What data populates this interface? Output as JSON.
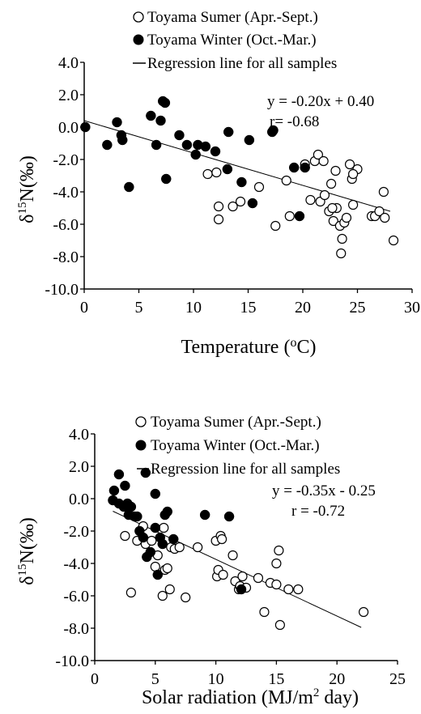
{
  "chart_data": [
    {
      "type": "scatter",
      "xlabel": "Temperature (°C)",
      "ylabel": "δ15N(‰)",
      "xlim": [
        0,
        30
      ],
      "ylim": [
        -10,
        4
      ],
      "xticks": [
        "0",
        "5",
        "10",
        "15",
        "20",
        "25",
        "30"
      ],
      "yticks": [
        "-10.0",
        "-8.0",
        "-6.0",
        "-4.0",
        "-2.0",
        "0.0",
        "2.0",
        "4.0"
      ],
      "legend_position": "top",
      "legend": [
        "Toyama Sumer (Apr.-Sept.)",
        "Toyama Winter (Oct.-Mar.)",
        "Regression line for all samples"
      ],
      "annotations": [
        "y = -0.20x + 0.40",
        "r= -0.68"
      ],
      "regression": {
        "slope": -0.2,
        "intercept": 0.4,
        "x_range": [
          0,
          28
        ]
      },
      "series": [
        {
          "name": "Toyama Sumer (Apr.-Sept.)",
          "marker": "open-circle",
          "points": [
            [
              11.3,
              -2.9
            ],
            [
              12.1,
              -2.8
            ],
            [
              12.3,
              -4.9
            ],
            [
              12.3,
              -5.7
            ],
            [
              13.6,
              -4.9
            ],
            [
              14.3,
              -4.6
            ],
            [
              16.0,
              -3.7
            ],
            [
              17.5,
              -6.1
            ],
            [
              18.5,
              -3.3
            ],
            [
              18.8,
              -5.5
            ],
            [
              20.2,
              -2.3
            ],
            [
              20.7,
              -4.5
            ],
            [
              21.1,
              -2.1
            ],
            [
              21.4,
              -1.7
            ],
            [
              21.6,
              -4.6
            ],
            [
              21.9,
              -2.1
            ],
            [
              22.0,
              -4.2
            ],
            [
              22.4,
              -5.2
            ],
            [
              22.6,
              -3.5
            ],
            [
              22.8,
              -5.8
            ],
            [
              23.0,
              -2.7
            ],
            [
              23.1,
              -5.0
            ],
            [
              23.4,
              -6.1
            ],
            [
              23.5,
              -7.8
            ],
            [
              23.6,
              -6.9
            ],
            [
              23.8,
              -5.9
            ],
            [
              24.0,
              -5.6
            ],
            [
              24.3,
              -2.3
            ],
            [
              24.5,
              -3.2
            ],
            [
              24.6,
              -4.8
            ],
            [
              25.0,
              -2.6
            ],
            [
              26.3,
              -5.5
            ],
            [
              26.6,
              -5.5
            ],
            [
              27.0,
              -5.2
            ],
            [
              27.4,
              -4.0
            ],
            [
              27.5,
              -5.6
            ],
            [
              28.3,
              -7.0
            ],
            [
              24.6,
              -2.9
            ],
            [
              22.7,
              -5.0
            ]
          ]
        },
        {
          "name": "Toyama Winter (Oct.-Mar.)",
          "marker": "filled-circle",
          "points": [
            [
              0.1,
              0.0
            ],
            [
              2.1,
              -1.1
            ],
            [
              3.0,
              0.3
            ],
            [
              3.4,
              -0.5
            ],
            [
              3.5,
              -0.8
            ],
            [
              4.1,
              -3.7
            ],
            [
              6.1,
              0.7
            ],
            [
              6.6,
              -1.1
            ],
            [
              7.0,
              0.4
            ],
            [
              7.2,
              1.6
            ],
            [
              7.4,
              1.5
            ],
            [
              7.5,
              -3.2
            ],
            [
              8.7,
              -0.5
            ],
            [
              9.4,
              -1.1
            ],
            [
              10.2,
              -1.7
            ],
            [
              10.4,
              -1.1
            ],
            [
              11.1,
              -1.2
            ],
            [
              12.0,
              -1.5
            ],
            [
              13.1,
              -2.6
            ],
            [
              13.2,
              -0.3
            ],
            [
              14.4,
              -3.4
            ],
            [
              15.1,
              -0.8
            ],
            [
              15.4,
              -4.7
            ],
            [
              17.2,
              -0.3
            ],
            [
              17.3,
              -0.2
            ],
            [
              19.2,
              -2.5
            ],
            [
              19.7,
              -5.5
            ],
            [
              20.2,
              -2.5
            ]
          ]
        }
      ]
    },
    {
      "type": "scatter",
      "xlabel": "Solar radiation (MJ/m2 day)",
      "ylabel": "δ15N(‰)",
      "xlim": [
        0,
        25
      ],
      "ylim": [
        -10,
        4
      ],
      "xticks": [
        "0",
        "5",
        "10",
        "15",
        "20",
        "25"
      ],
      "yticks": [
        "-10.0",
        "-8.0",
        "-6.0",
        "-4.0",
        "-2.0",
        "0.0",
        "2.0",
        "4.0"
      ],
      "legend_position": "top",
      "legend": [
        "Toyama Sumer (Apr.-Sept.)",
        "Toyama Winter (Oct.-Mar.)",
        "Regression line for all samples"
      ],
      "annotations": [
        "y = -0.35x - 0.25",
        "r = -0.72"
      ],
      "regression": {
        "slope": -0.35,
        "intercept": -0.25,
        "x_range": [
          1.5,
          22
        ]
      },
      "series": [
        {
          "name": "Toyama Sumer (Apr.-Sept.)",
          "marker": "open-circle",
          "points": [
            [
              2.5,
              -2.3
            ],
            [
              3.0,
              -5.8
            ],
            [
              3.5,
              -2.6
            ],
            [
              4.0,
              -1.7
            ],
            [
              4.2,
              -2.8
            ],
            [
              4.7,
              -2.6
            ],
            [
              5.0,
              -4.2
            ],
            [
              5.2,
              -3.5
            ],
            [
              5.6,
              -6.0
            ],
            [
              5.7,
              -1.8
            ],
            [
              5.8,
              -4.4
            ],
            [
              6.0,
              -4.3
            ],
            [
              6.2,
              -5.6
            ],
            [
              6.3,
              -3.0
            ],
            [
              6.6,
              -3.1
            ],
            [
              7.0,
              -3.0
            ],
            [
              7.5,
              -6.1
            ],
            [
              8.5,
              -3.0
            ],
            [
              10.0,
              -2.6
            ],
            [
              10.1,
              -4.8
            ],
            [
              10.2,
              -4.4
            ],
            [
              10.4,
              -2.3
            ],
            [
              10.5,
              -2.5
            ],
            [
              10.6,
              -4.7
            ],
            [
              11.4,
              -3.5
            ],
            [
              11.6,
              -5.1
            ],
            [
              11.9,
              -5.6
            ],
            [
              12.0,
              -5.4
            ],
            [
              12.2,
              -4.8
            ],
            [
              12.5,
              -5.5
            ],
            [
              13.5,
              -4.9
            ],
            [
              14.0,
              -7.0
            ],
            [
              14.5,
              -5.2
            ],
            [
              15.0,
              -4.0
            ],
            [
              15.0,
              -5.3
            ],
            [
              15.2,
              -3.2
            ],
            [
              15.3,
              -7.8
            ],
            [
              16.0,
              -5.6
            ],
            [
              16.8,
              -5.6
            ],
            [
              22.2,
              -7.0
            ]
          ]
        },
        {
          "name": "Toyama Winter (Oct.-Mar.)",
          "marker": "filled-circle",
          "points": [
            [
              1.6,
              0.5
            ],
            [
              1.5,
              -0.1
            ],
            [
              2.0,
              1.5
            ],
            [
              2.0,
              -0.3
            ],
            [
              2.5,
              0.8
            ],
            [
              2.4,
              -0.5
            ],
            [
              2.7,
              -0.3
            ],
            [
              2.8,
              -1.0
            ],
            [
              3.0,
              -0.5
            ],
            [
              3.3,
              -1.1
            ],
            [
              3.5,
              -1.1
            ],
            [
              3.7,
              -2.0
            ],
            [
              4.0,
              -2.4
            ],
            [
              4.2,
              1.6
            ],
            [
              4.3,
              -3.6
            ],
            [
              4.6,
              -3.3
            ],
            [
              5.0,
              0.3
            ],
            [
              5.0,
              -1.8
            ],
            [
              5.2,
              -4.7
            ],
            [
              5.4,
              -2.4
            ],
            [
              5.6,
              -2.8
            ],
            [
              5.8,
              -1.0
            ],
            [
              6.0,
              -0.8
            ],
            [
              6.5,
              -2.5
            ],
            [
              9.1,
              -1.0
            ],
            [
              11.1,
              -1.1
            ],
            [
              12.1,
              -5.6
            ]
          ]
        }
      ]
    }
  ]
}
